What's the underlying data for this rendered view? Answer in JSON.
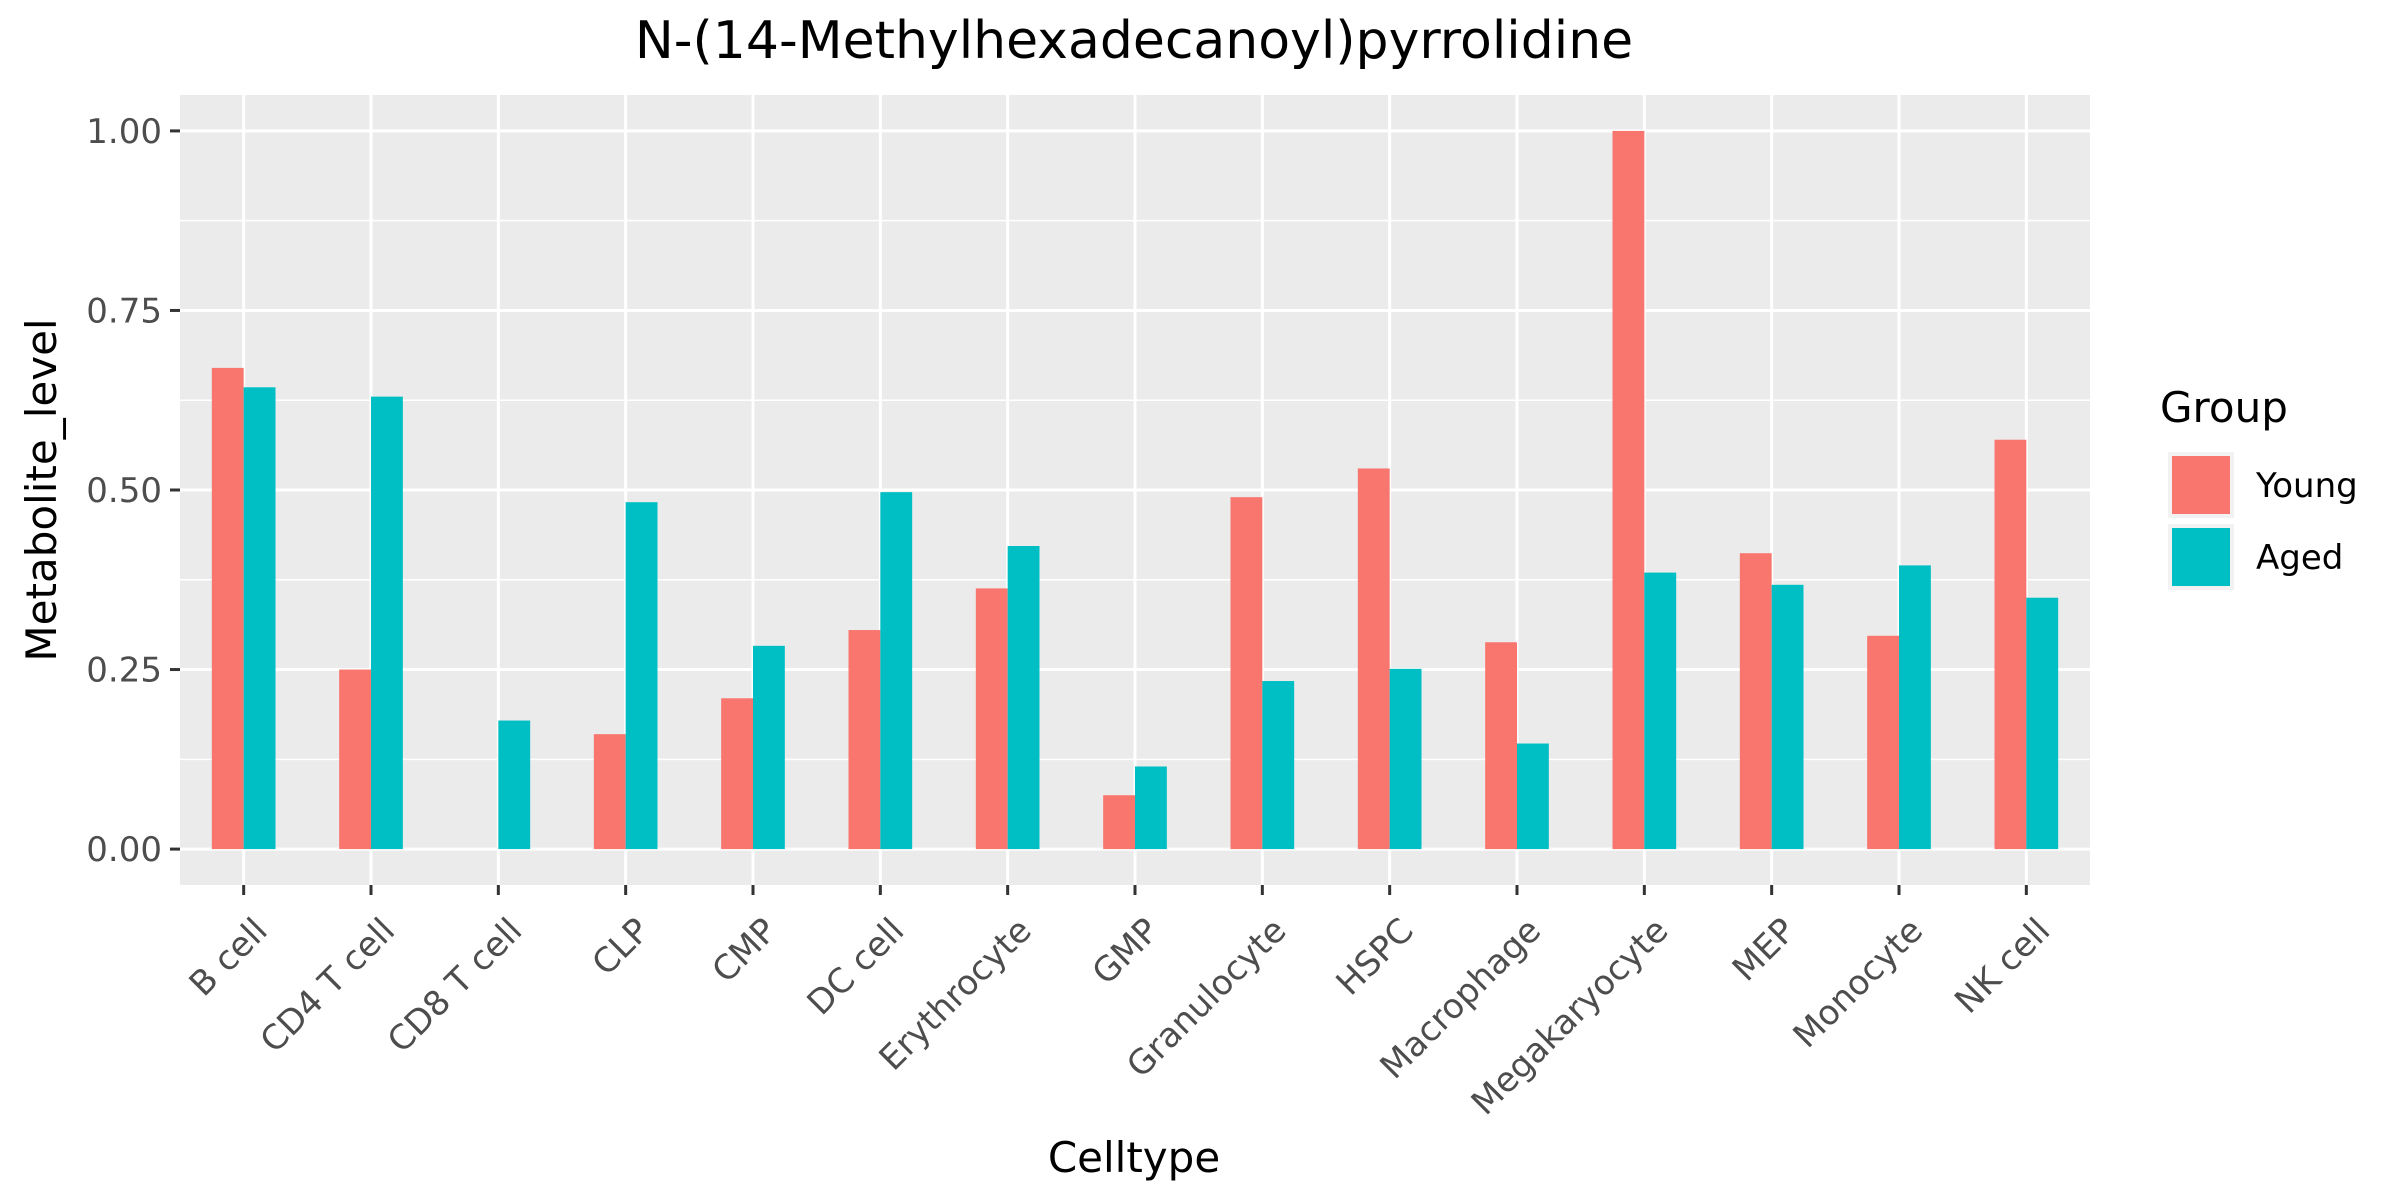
{
  "chart_data": {
    "type": "bar",
    "title": "N-(14-Methylhexadecanoyl)pyrrolidine",
    "xlabel": "Celltype",
    "ylabel": "Metabolite_level",
    "ylim": [
      -0.05,
      1.05
    ],
    "yticks": [
      0.0,
      0.25,
      0.5,
      0.75,
      1.0
    ],
    "ytick_labels": [
      "0.00",
      "0.25",
      "0.50",
      "0.75",
      "1.00"
    ],
    "grid": true,
    "legend": {
      "title": "Group",
      "position": "right"
    },
    "categories": [
      "B cell",
      "CD4 T cell",
      "CD8 T cell",
      "CLP",
      "CMP",
      "DC cell",
      "Erythrocyte",
      "GMP",
      "Granulocyte",
      "HSPC",
      "Macrophage",
      "Megakaryocyte",
      "MEP",
      "Monocyte",
      "NK cell"
    ],
    "series": [
      {
        "name": "Young",
        "color": "#F8766D",
        "values": [
          0.67,
          0.25,
          0.0,
          0.16,
          0.21,
          0.305,
          0.363,
          0.075,
          0.49,
          0.53,
          0.288,
          1.0,
          0.412,
          0.297,
          0.57
        ]
      },
      {
        "name": "Aged",
        "color": "#00BFC4",
        "values": [
          0.643,
          0.63,
          0.179,
          0.483,
          0.283,
          0.497,
          0.422,
          0.115,
          0.234,
          0.251,
          0.147,
          0.385,
          0.368,
          0.395,
          0.35
        ]
      }
    ],
    "panel_background": "#EBEBEB"
  }
}
